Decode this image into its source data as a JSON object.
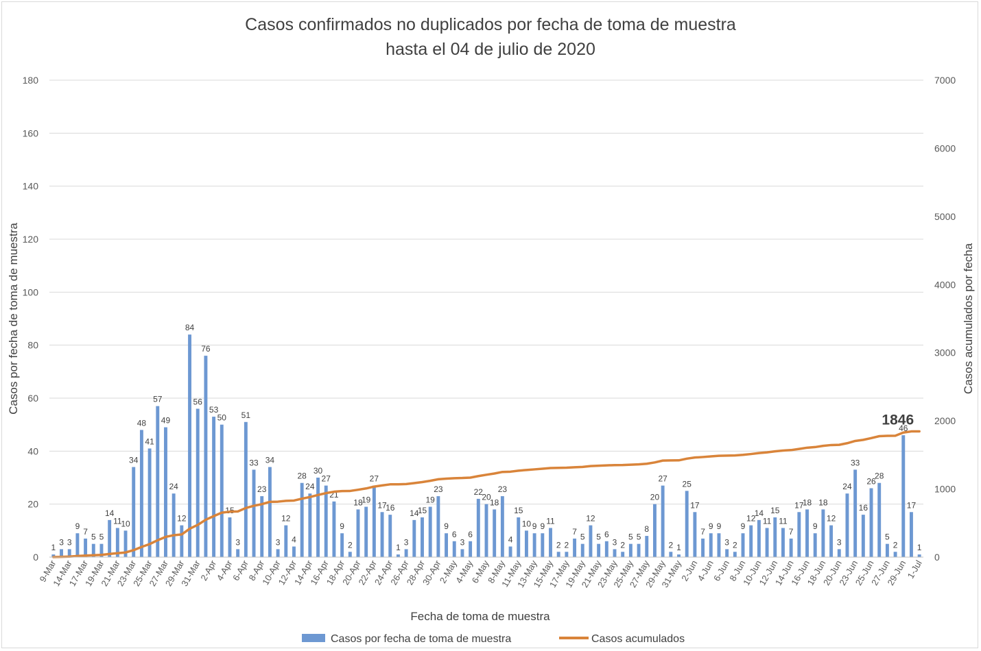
{
  "title": "Casos confirmados no duplicados por fecha de toma de muestra",
  "subtitle": "hasta el 04 de julio de 2020",
  "chart_data": {
    "type": "bar",
    "title": "Casos confirmados no duplicados por fecha de toma de muestra",
    "subtitle": "hasta el 04 de julio de 2020",
    "xlabel": "Fecha de toma de muestra",
    "ylabel": "Casos por fecha de toma de muestra",
    "y2label": "Casos acumulados por fecha",
    "ylim": [
      0,
      180
    ],
    "y2lim": [
      0,
      7000
    ],
    "yticks": [
      "0",
      "20",
      "40",
      "60",
      "80",
      "100",
      "120",
      "140",
      "160",
      "180"
    ],
    "y2ticks": [
      "0",
      "1000",
      "2000",
      "3000",
      "4000",
      "5000",
      "6000",
      "7000"
    ],
    "grid": true,
    "legend_position": "bottom",
    "legend": [
      "Casos por fecha de toma de muestra",
      "Casos acumulados"
    ],
    "x_tick_labels": [
      "9-Mar",
      "14-Mar",
      "17-Mar",
      "19-Mar",
      "21-Mar",
      "23-Mar",
      "25-Mar",
      "27-Mar",
      "29-Mar",
      "31-Mar",
      "2-Apr",
      "4-Apr",
      "6-Apr",
      "8-Apr",
      "10-Apr",
      "12-Apr",
      "14-Apr",
      "16-Apr",
      "18-Apr",
      "20-Apr",
      "22-Apr",
      "24-Apr",
      "26-Apr",
      "28-Apr",
      "30-Apr",
      "2-May",
      "4-May",
      "6-May",
      "8-May",
      "11-May",
      "13-May",
      "15-May",
      "17-May",
      "19-May",
      "21-May",
      "23-May",
      "25-May",
      "27-May",
      "29-May",
      "31-May",
      "2-Jun",
      "4-Jun",
      "6-Jun",
      "8-Jun",
      "10-Jun",
      "12-Jun",
      "14-Jun",
      "16-Jun",
      "18-Jun",
      "20-Jun",
      "23-Jun",
      "25-Jun",
      "27-Jun",
      "29-Jun",
      "1-Jul"
    ],
    "series": [
      {
        "name": "Casos por fecha de toma de muestra",
        "type": "bar",
        "color": "#6d98d2",
        "values": [
          1,
          3,
          3,
          9,
          7,
          5,
          5,
          14,
          11,
          10,
          34,
          48,
          41,
          57,
          49,
          24,
          12,
          84,
          56,
          76,
          53,
          50,
          15,
          3,
          51,
          33,
          23,
          34,
          3,
          12,
          4,
          28,
          24,
          30,
          27,
          21,
          9,
          2,
          18,
          19,
          27,
          17,
          16,
          1,
          3,
          14,
          15,
          19,
          23,
          9,
          6,
          3,
          6,
          22,
          20,
          18,
          23,
          4,
          15,
          10,
          9,
          9,
          11,
          2,
          2,
          7,
          5,
          12,
          5,
          6,
          3,
          2,
          5,
          5,
          8,
          20,
          27,
          2,
          1,
          25,
          17,
          7,
          9,
          9,
          3,
          2,
          9,
          12,
          14,
          11,
          15,
          11,
          7,
          17,
          18,
          9,
          18,
          12,
          3,
          24,
          33,
          16,
          26,
          28,
          5,
          2,
          46,
          17,
          1
        ]
      },
      {
        "name": "Casos acumulados",
        "type": "line",
        "color": "#d9843a",
        "end_label": "1846",
        "values": [
          1,
          4,
          7,
          16,
          23,
          28,
          33,
          47,
          58,
          68,
          102,
          150,
          191,
          248,
          297,
          321,
          333,
          417,
          473,
          549,
          602,
          652,
          667,
          670,
          721,
          754,
          777,
          811,
          814,
          826,
          830,
          858,
          882,
          912,
          939,
          960,
          969,
          971,
          989,
          1008,
          1035,
          1052,
          1068,
          1069,
          1072,
          1086,
          1101,
          1120,
          1143,
          1152,
          1158,
          1161,
          1167,
          1189,
          1209,
          1227,
          1250,
          1254,
          1269,
          1279,
          1288,
          1297,
          1308,
          1310,
          1312,
          1319,
          1324,
          1336,
          1341,
          1347,
          1350,
          1352,
          1357,
          1362,
          1370,
          1390,
          1417,
          1419,
          1420,
          1445,
          1462,
          1469,
          1478,
          1487,
          1490,
          1492,
          1501,
          1513,
          1527,
          1538,
          1553,
          1564,
          1571,
          1588,
          1606,
          1615,
          1633,
          1645,
          1648,
          1672,
          1705,
          1721,
          1747,
          1775,
          1780,
          1782,
          1828,
          1845,
          1846
        ]
      }
    ]
  }
}
